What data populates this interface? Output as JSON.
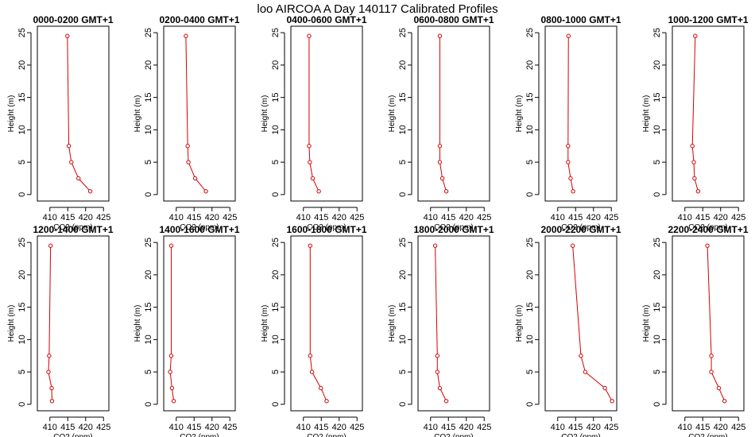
{
  "title": "loo AIRCOA A  Day 140117  Calibrated Profiles",
  "colors": {
    "series": "#d40000",
    "axis": "#000000",
    "background": "#ffffff"
  },
  "chart_data": [
    {
      "type": "line",
      "title": "0000-0200 GMT+1",
      "xlabel": "CO2 (ppm)",
      "ylabel": "Height (m)",
      "xlim": [
        406.5,
        426.5
      ],
      "ylim": [
        -1,
        26
      ],
      "xticks": [
        410,
        415,
        420,
        425
      ],
      "yticks": [
        0,
        5,
        10,
        15,
        20,
        25
      ],
      "x": [
        421.3,
        418.0,
        416.0,
        415.3,
        414.9
      ],
      "y": [
        0.5,
        2.5,
        5,
        7.5,
        24.5
      ]
    },
    {
      "type": "line",
      "title": "0200-0400 GMT+1",
      "xlabel": "CO2 (ppm)",
      "ylabel": "Height (m)",
      "xlim": [
        406.5,
        426.5
      ],
      "ylim": [
        -1,
        26
      ],
      "xticks": [
        410,
        415,
        420,
        425
      ],
      "yticks": [
        0,
        5,
        10,
        15,
        20,
        25
      ],
      "x": [
        418.3,
        415.3,
        413.4,
        413.2,
        412.7
      ],
      "y": [
        0.5,
        2.5,
        5,
        7.5,
        24.5
      ]
    },
    {
      "type": "line",
      "title": "0400-0600 GMT+1",
      "xlabel": "CO2 (ppm)",
      "ylabel": "Height (m)",
      "xlim": [
        406.5,
        426.5
      ],
      "ylim": [
        -1,
        26
      ],
      "xticks": [
        410,
        415,
        420,
        425
      ],
      "yticks": [
        0,
        5,
        10,
        15,
        20,
        25
      ],
      "x": [
        414.3,
        412.6,
        411.8,
        411.6,
        411.6
      ],
      "y": [
        0.5,
        2.5,
        5,
        7.5,
        24.5
      ]
    },
    {
      "type": "line",
      "title": "0600-0800 GMT+1",
      "xlabel": "CO2 (ppm)",
      "ylabel": "Height (m)",
      "xlim": [
        406.5,
        426.5
      ],
      "ylim": [
        -1,
        26
      ],
      "xticks": [
        410,
        415,
        420,
        425
      ],
      "yticks": [
        0,
        5,
        10,
        15,
        20,
        25
      ],
      "x": [
        414.4,
        413.3,
        412.6,
        412.6,
        412.6
      ],
      "y": [
        0.5,
        2.5,
        5,
        7.5,
        24.5
      ]
    },
    {
      "type": "line",
      "title": "0800-1000 GMT+1",
      "xlabel": "CO2 (ppm)",
      "ylabel": "Height (m)",
      "xlim": [
        406.5,
        426.5
      ],
      "ylim": [
        -1,
        26
      ],
      "xticks": [
        410,
        415,
        420,
        425
      ],
      "yticks": [
        0,
        5,
        10,
        15,
        20,
        25
      ],
      "x": [
        414.3,
        413.6,
        412.9,
        412.9,
        413.0
      ],
      "y": [
        0.5,
        2.5,
        5,
        7.5,
        24.5
      ]
    },
    {
      "type": "line",
      "title": "1000-1200 GMT+1",
      "xlabel": "CO2 (ppm)",
      "ylabel": "Height (m)",
      "xlim": [
        406.5,
        426.5
      ],
      "ylim": [
        -1,
        26
      ],
      "xticks": [
        410,
        415,
        420,
        425
      ],
      "yticks": [
        0,
        5,
        10,
        15,
        20,
        25
      ],
      "x": [
        413.7,
        412.7,
        412.5,
        412.1,
        412.9
      ],
      "y": [
        0.5,
        2.5,
        5,
        7.5,
        24.5
      ]
    },
    {
      "type": "line",
      "title": "1200-1400 GMT+1",
      "xlabel": "CO2 (ppm)",
      "ylabel": "Height (m)",
      "xlim": [
        406.5,
        426.5
      ],
      "ylim": [
        -1,
        26
      ],
      "xticks": [
        410,
        415,
        420,
        425
      ],
      "yticks": [
        0,
        5,
        10,
        15,
        20,
        25
      ],
      "x": [
        410.6,
        410.5,
        409.6,
        409.8,
        410.2
      ],
      "y": [
        0.5,
        2.5,
        5,
        7.5,
        24.5
      ]
    },
    {
      "type": "line",
      "title": "1400-1600 GMT+1",
      "xlabel": "CO2 (ppm)",
      "ylabel": "Height (m)",
      "xlim": [
        406.5,
        426.5
      ],
      "ylim": [
        -1,
        26
      ],
      "xticks": [
        410,
        415,
        420,
        425
      ],
      "yticks": [
        0,
        5,
        10,
        15,
        20,
        25
      ],
      "x": [
        409.3,
        408.8,
        408.3,
        408.6,
        408.6
      ],
      "y": [
        0.5,
        2.5,
        5,
        7.5,
        24.5
      ]
    },
    {
      "type": "line",
      "title": "1600-1800 GMT+1",
      "xlabel": "CO2 (ppm)",
      "ylabel": "Height (m)",
      "xlim": [
        406.5,
        426.5
      ],
      "ylim": [
        -1,
        26
      ],
      "xticks": [
        410,
        415,
        420,
        425
      ],
      "yticks": [
        0,
        5,
        10,
        15,
        20,
        25
      ],
      "x": [
        416.5,
        414.9,
        412.4,
        411.9,
        411.9
      ],
      "y": [
        0.5,
        2.5,
        5,
        7.5,
        24.5
      ]
    },
    {
      "type": "line",
      "title": "1800-2000 GMT+1",
      "xlabel": "CO2 (ppm)",
      "ylabel": "Height (m)",
      "xlim": [
        406.5,
        426.5
      ],
      "ylim": [
        -1,
        26
      ],
      "xticks": [
        410,
        415,
        420,
        425
      ],
      "yticks": [
        0,
        5,
        10,
        15,
        20,
        25
      ],
      "x": [
        414.4,
        412.6,
        411.9,
        411.9,
        411.3
      ],
      "y": [
        0.5,
        2.5,
        5,
        7.5,
        24.5
      ]
    },
    {
      "type": "line",
      "title": "2000-2200 GMT+1",
      "xlabel": "CO2 (ppm)",
      "ylabel": "Height (m)",
      "xlim": [
        406.5,
        426.5
      ],
      "ylim": [
        -1,
        26
      ],
      "xticks": [
        410,
        415,
        420,
        425
      ],
      "yticks": [
        0,
        5,
        10,
        15,
        20,
        25
      ],
      "x": [
        425.2,
        423.2,
        417.7,
        416.5,
        414.2
      ],
      "y": [
        0.5,
        2.5,
        5,
        7.5,
        24.5
      ]
    },
    {
      "type": "line",
      "title": "2200-2400 GMT+1",
      "xlabel": "CO2 (ppm)",
      "ylabel": "Height (m)",
      "xlim": [
        406.5,
        426.5
      ],
      "ylim": [
        -1,
        26
      ],
      "xticks": [
        410,
        415,
        420,
        425
      ],
      "yticks": [
        0,
        5,
        10,
        15,
        20,
        25
      ],
      "x": [
        421.1,
        419.5,
        417.4,
        417.4,
        416.3
      ],
      "y": [
        0.5,
        2.5,
        5,
        7.5,
        24.5
      ]
    }
  ]
}
